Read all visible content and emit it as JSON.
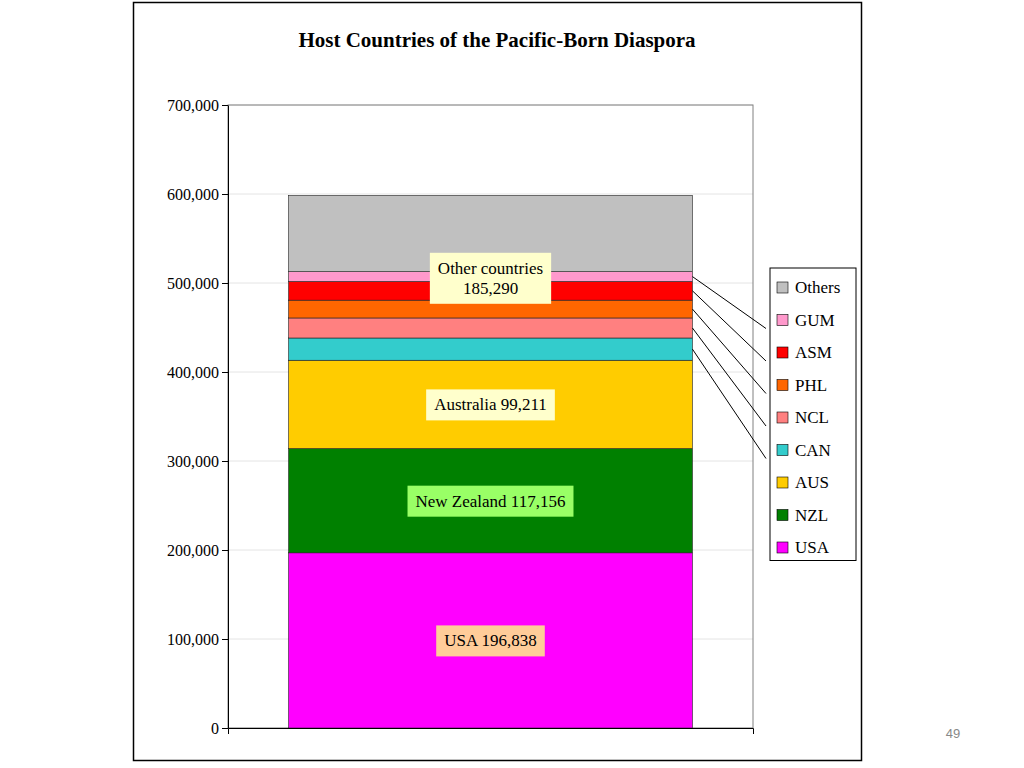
{
  "chart_data": {
    "type": "bar",
    "title": "Host Countries of the Pacific-Born Diaspora",
    "stacked": true,
    "data_labels": true,
    "grid": true,
    "legend": "right",
    "categories": [
      null
    ],
    "series": [
      {
        "name": "USA",
        "color": "#FF00FF",
        "values": [
          196838
        ],
        "value_labels": [
          "USA 196,838"
        ]
      },
      {
        "name": "NZL",
        "color": "#008000",
        "values": [
          117156
        ],
        "value_labels": [
          "New Zealand 117,156"
        ]
      },
      {
        "name": "AUS",
        "color": "#FFCC00",
        "values": [
          99211
        ],
        "value_labels": [
          "Australia 99,211"
        ]
      },
      {
        "name": "CAN",
        "color": "#33CCCC",
        "values": [
          25000
        ]
      },
      {
        "name": "NCL",
        "color": "#FF8080",
        "values": [
          22500
        ]
      },
      {
        "name": "PHL",
        "color": "#FF6600",
        "values": [
          20000
        ]
      },
      {
        "name": "ASM",
        "color": "#FF0000",
        "values": [
          21000
        ]
      },
      {
        "name": "GUM",
        "color": "#FF99CC",
        "values": [
          11000
        ]
      },
      {
        "name": "Others",
        "color": "#C0C0C0",
        "values": [
          85790
        ]
      }
    ],
    "annotations": [
      {
        "text": "Other countries 185,290"
      }
    ],
    "ylim": [
      0,
      700000
    ],
    "yticks": [
      0,
      {
        "value": 100000,
        "label": "100,000"
      },
      {
        "value": 200000,
        "label": "200,000"
      },
      {
        "value": 300000,
        "label": "300,000"
      },
      {
        "value": 400000,
        "label": "400,000"
      },
      {
        "value": 500000,
        "label": "500,000"
      },
      {
        "value": 600000,
        "label": "600,000"
      },
      {
        "value": 700000,
        "label": "700,000"
      }
    ]
  },
  "slide": {
    "page_number": "49"
  }
}
